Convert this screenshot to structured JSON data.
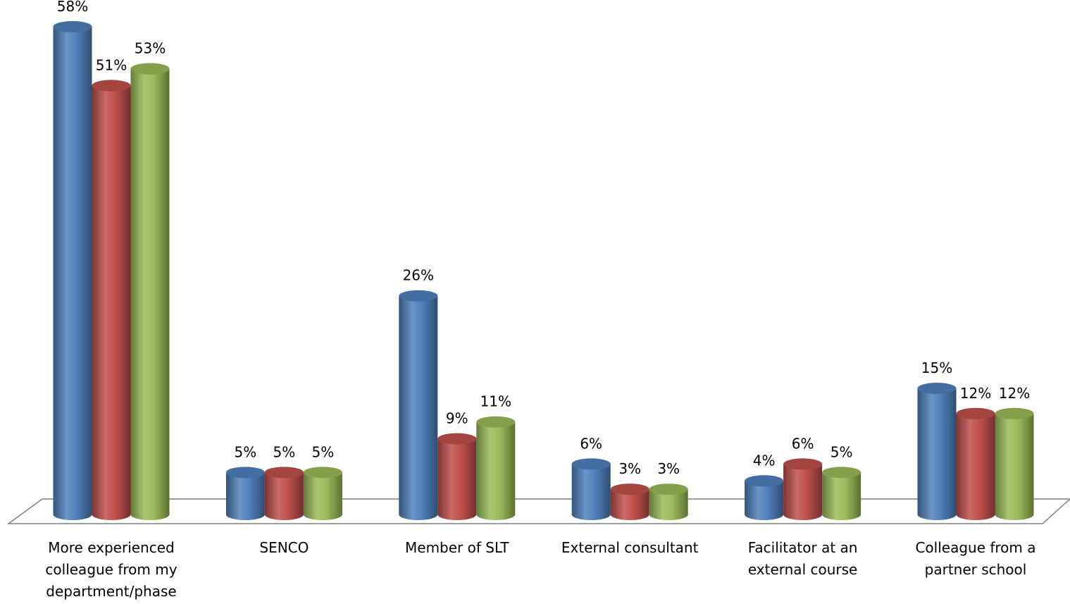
{
  "chart_data": {
    "type": "bar",
    "style": "3d-cylinder",
    "categories": [
      "More experienced colleague from my department/phase",
      "SENCO",
      "Member of SLT",
      "External consultant",
      "Facilitator at an external course",
      "Colleague from a partner school"
    ],
    "ylim": [
      0,
      60
    ],
    "series": [
      {
        "color": "#4f81bd",
        "values": [
          58,
          5,
          26,
          6,
          4,
          15
        ],
        "value_labels": [
          "58%",
          "5%",
          "26%",
          "6%",
          "4%",
          "15%"
        ]
      },
      {
        "color": "#c0504d",
        "values": [
          51,
          5,
          9,
          3,
          6,
          12
        ],
        "value_labels": [
          "51%",
          "5%",
          "9%",
          "3%",
          "6%",
          "12%"
        ]
      },
      {
        "color": "#9bbb59",
        "values": [
          53,
          5,
          11,
          3,
          5,
          12
        ],
        "value_labels": [
          "53%",
          "5%",
          "11%",
          "3%",
          "5%",
          "12%"
        ]
      }
    ]
  }
}
